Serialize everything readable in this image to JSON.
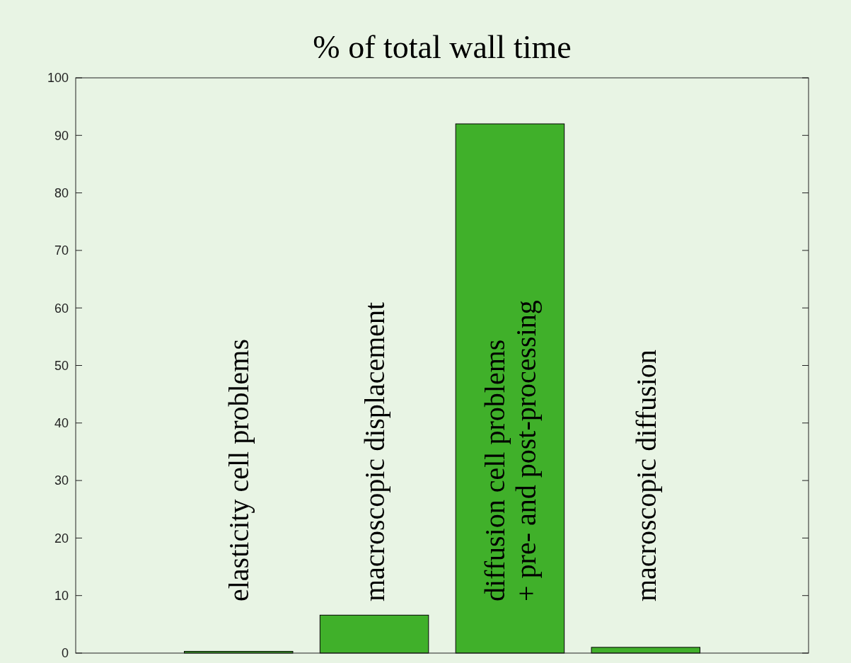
{
  "chart_data": {
    "type": "bar",
    "title": "% of total wall time",
    "categories": [
      "elasticity cell problems",
      "macroscopic displacement",
      "diffusion cell problems\n+ pre- and post-processing",
      "macroscopic diffusion"
    ],
    "values": [
      0.3,
      6.6,
      92,
      1.0
    ],
    "color": "#40b02a",
    "ylim": [
      0,
      100
    ],
    "yticks": [
      0,
      10,
      20,
      30,
      40,
      50,
      60,
      70,
      80,
      90,
      100
    ]
  }
}
